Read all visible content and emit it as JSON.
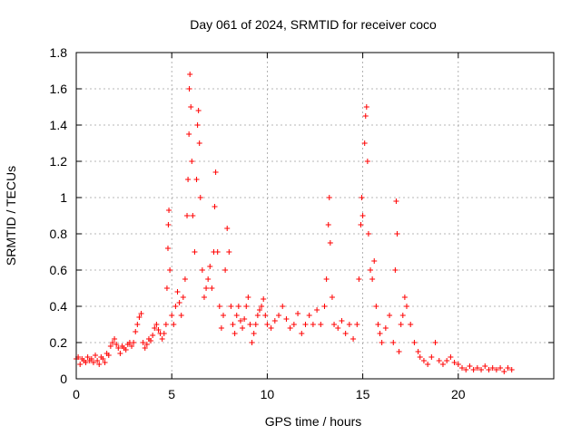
{
  "chart_data": {
    "type": "scatter",
    "title": "Day 061 of 2024, SRMTID for receiver coco",
    "xlabel": "GPS time / hours",
    "ylabel": "SRMTID / TECUs",
    "xlim": [
      0,
      25
    ],
    "ylim": [
      0,
      1.8
    ],
    "xticks": [
      0,
      5,
      10,
      15,
      20
    ],
    "xtick_labels": [
      "0",
      "5",
      "10",
      "15",
      "20"
    ],
    "yticks": [
      0,
      0.2,
      0.4,
      0.6,
      0.8,
      1,
      1.2,
      1.4,
      1.6,
      1.8
    ],
    "ytick_labels": [
      "0",
      "0.2",
      "0.4",
      "0.6",
      "0.8",
      "1",
      "1.2",
      "1.4",
      "1.6",
      "1.8"
    ],
    "grid": true,
    "marker": "+",
    "color": "#ff0000",
    "series": [
      {
        "name": "SRMTID",
        "points": [
          [
            0.0,
            0.11
          ],
          [
            0.1,
            0.12
          ],
          [
            0.2,
            0.08
          ],
          [
            0.3,
            0.11
          ],
          [
            0.4,
            0.1
          ],
          [
            0.5,
            0.09
          ],
          [
            0.6,
            0.12
          ],
          [
            0.7,
            0.1
          ],
          [
            0.8,
            0.11
          ],
          [
            0.9,
            0.09
          ],
          [
            1.0,
            0.13
          ],
          [
            1.1,
            0.1
          ],
          [
            1.2,
            0.08
          ],
          [
            1.3,
            0.12
          ],
          [
            1.4,
            0.11
          ],
          [
            1.5,
            0.09
          ],
          [
            1.6,
            0.14
          ],
          [
            1.7,
            0.13
          ],
          [
            1.8,
            0.18
          ],
          [
            1.9,
            0.2
          ],
          [
            2.0,
            0.22
          ],
          [
            2.1,
            0.19
          ],
          [
            2.2,
            0.17
          ],
          [
            2.3,
            0.14
          ],
          [
            2.4,
            0.18
          ],
          [
            2.5,
            0.17
          ],
          [
            2.6,
            0.16
          ],
          [
            2.7,
            0.19
          ],
          [
            2.8,
            0.2
          ],
          [
            2.9,
            0.18
          ],
          [
            3.0,
            0.2
          ],
          [
            3.1,
            0.26
          ],
          [
            3.2,
            0.3
          ],
          [
            3.3,
            0.34
          ],
          [
            3.4,
            0.36
          ],
          [
            3.5,
            0.2
          ],
          [
            3.6,
            0.17
          ],
          [
            3.7,
            0.19
          ],
          [
            3.8,
            0.22
          ],
          [
            3.9,
            0.21
          ],
          [
            4.0,
            0.24
          ],
          [
            4.1,
            0.28
          ],
          [
            4.2,
            0.3
          ],
          [
            4.3,
            0.27
          ],
          [
            4.4,
            0.25
          ],
          [
            4.5,
            0.22
          ],
          [
            4.6,
            0.25
          ],
          [
            4.7,
            0.3
          ],
          [
            4.75,
            0.5
          ],
          [
            4.8,
            0.72
          ],
          [
            4.82,
            0.85
          ],
          [
            4.85,
            0.93
          ],
          [
            4.9,
            0.6
          ],
          [
            5.0,
            0.35
          ],
          [
            5.1,
            0.3
          ],
          [
            5.2,
            0.4
          ],
          [
            5.3,
            0.48
          ],
          [
            5.4,
            0.42
          ],
          [
            5.5,
            0.35
          ],
          [
            5.6,
            0.45
          ],
          [
            5.7,
            0.55
          ],
          [
            5.8,
            0.9
          ],
          [
            5.85,
            1.1
          ],
          [
            5.9,
            1.35
          ],
          [
            5.92,
            1.6
          ],
          [
            5.95,
            1.68
          ],
          [
            6.0,
            1.5
          ],
          [
            6.05,
            1.2
          ],
          [
            6.1,
            0.9
          ],
          [
            6.2,
            0.7
          ],
          [
            6.3,
            1.1
          ],
          [
            6.35,
            1.4
          ],
          [
            6.4,
            1.48
          ],
          [
            6.45,
            1.3
          ],
          [
            6.5,
            1.0
          ],
          [
            6.6,
            0.6
          ],
          [
            6.7,
            0.45
          ],
          [
            6.8,
            0.5
          ],
          [
            6.9,
            0.55
          ],
          [
            7.0,
            0.62
          ],
          [
            7.1,
            0.5
          ],
          [
            7.2,
            0.7
          ],
          [
            7.25,
            0.95
          ],
          [
            7.3,
            1.14
          ],
          [
            7.4,
            0.7
          ],
          [
            7.5,
            0.4
          ],
          [
            7.6,
            0.28
          ],
          [
            7.7,
            0.35
          ],
          [
            7.8,
            0.6
          ],
          [
            7.9,
            0.83
          ],
          [
            8.0,
            0.7
          ],
          [
            8.1,
            0.4
          ],
          [
            8.2,
            0.3
          ],
          [
            8.3,
            0.25
          ],
          [
            8.4,
            0.35
          ],
          [
            8.5,
            0.4
          ],
          [
            8.6,
            0.32
          ],
          [
            8.7,
            0.28
          ],
          [
            8.8,
            0.33
          ],
          [
            8.9,
            0.4
          ],
          [
            9.0,
            0.45
          ],
          [
            9.1,
            0.3
          ],
          [
            9.2,
            0.2
          ],
          [
            9.3,
            0.25
          ],
          [
            9.4,
            0.3
          ],
          [
            9.5,
            0.35
          ],
          [
            9.6,
            0.38
          ],
          [
            9.7,
            0.4
          ],
          [
            9.8,
            0.44
          ],
          [
            9.9,
            0.35
          ],
          [
            10.0,
            0.3
          ],
          [
            10.2,
            0.28
          ],
          [
            10.4,
            0.32
          ],
          [
            10.6,
            0.35
          ],
          [
            10.8,
            0.4
          ],
          [
            11.0,
            0.33
          ],
          [
            11.2,
            0.28
          ],
          [
            11.4,
            0.3
          ],
          [
            11.6,
            0.36
          ],
          [
            11.8,
            0.25
          ],
          [
            12.0,
            0.3
          ],
          [
            12.2,
            0.35
          ],
          [
            12.4,
            0.3
          ],
          [
            12.6,
            0.38
          ],
          [
            12.8,
            0.3
          ],
          [
            13.0,
            0.4
          ],
          [
            13.1,
            0.55
          ],
          [
            13.2,
            0.85
          ],
          [
            13.25,
            1.0
          ],
          [
            13.3,
            0.75
          ],
          [
            13.4,
            0.45
          ],
          [
            13.5,
            0.3
          ],
          [
            13.7,
            0.28
          ],
          [
            13.9,
            0.32
          ],
          [
            14.1,
            0.25
          ],
          [
            14.3,
            0.3
          ],
          [
            14.5,
            0.22
          ],
          [
            14.7,
            0.3
          ],
          [
            14.8,
            0.55
          ],
          [
            14.9,
            0.85
          ],
          [
            14.95,
            1.0
          ],
          [
            15.0,
            0.9
          ],
          [
            15.1,
            1.3
          ],
          [
            15.15,
            1.45
          ],
          [
            15.2,
            1.5
          ],
          [
            15.25,
            1.2
          ],
          [
            15.3,
            0.8
          ],
          [
            15.4,
            0.6
          ],
          [
            15.5,
            0.55
          ],
          [
            15.6,
            0.65
          ],
          [
            15.7,
            0.4
          ],
          [
            15.8,
            0.3
          ],
          [
            15.9,
            0.25
          ],
          [
            16.0,
            0.2
          ],
          [
            16.2,
            0.28
          ],
          [
            16.4,
            0.35
          ],
          [
            16.6,
            0.2
          ],
          [
            16.7,
            0.6
          ],
          [
            16.75,
            0.98
          ],
          [
            16.8,
            0.8
          ],
          [
            16.9,
            0.15
          ],
          [
            17.0,
            0.3
          ],
          [
            17.1,
            0.35
          ],
          [
            17.2,
            0.45
          ],
          [
            17.3,
            0.4
          ],
          [
            17.5,
            0.3
          ],
          [
            17.7,
            0.2
          ],
          [
            17.9,
            0.15
          ],
          [
            18.0,
            0.12
          ],
          [
            18.2,
            0.1
          ],
          [
            18.4,
            0.08
          ],
          [
            18.6,
            0.12
          ],
          [
            18.8,
            0.2
          ],
          [
            19.0,
            0.1
          ],
          [
            19.2,
            0.08
          ],
          [
            19.4,
            0.1
          ],
          [
            19.6,
            0.12
          ],
          [
            19.8,
            0.09
          ],
          [
            20.0,
            0.08
          ],
          [
            20.2,
            0.06
          ],
          [
            20.4,
            0.05
          ],
          [
            20.6,
            0.07
          ],
          [
            20.8,
            0.05
          ],
          [
            21.0,
            0.06
          ],
          [
            21.2,
            0.05
          ],
          [
            21.4,
            0.07
          ],
          [
            21.6,
            0.05
          ],
          [
            21.8,
            0.06
          ],
          [
            22.0,
            0.05
          ],
          [
            22.2,
            0.06
          ],
          [
            22.4,
            0.04
          ],
          [
            22.6,
            0.06
          ],
          [
            22.8,
            0.05
          ]
        ]
      }
    ]
  }
}
